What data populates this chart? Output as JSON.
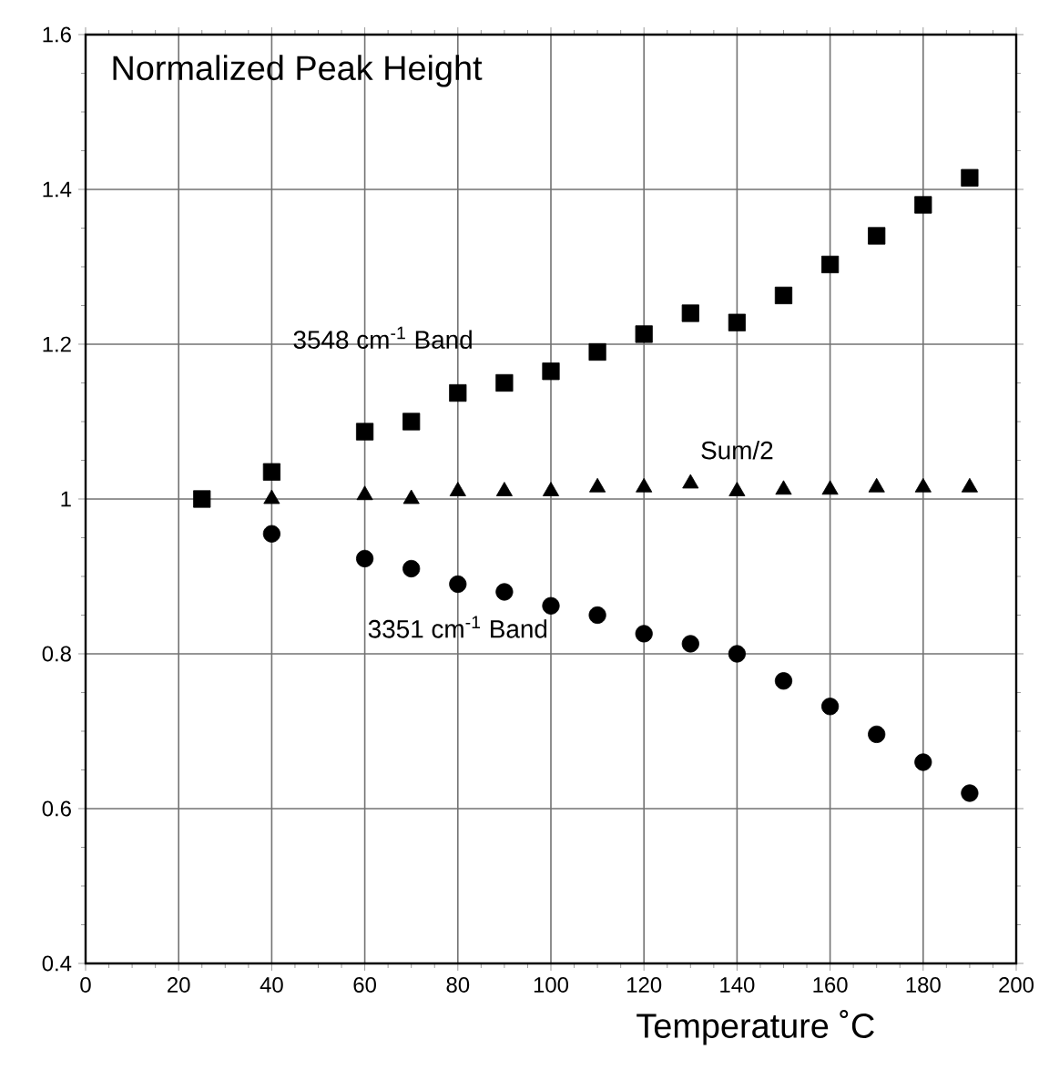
{
  "chart_data": {
    "type": "scatter",
    "title": "Normalized Peak Height",
    "xlabel": "Temperature ˚C",
    "xlim": [
      0,
      200
    ],
    "xticks": [
      0,
      20,
      40,
      60,
      80,
      100,
      120,
      140,
      160,
      180,
      200
    ],
    "ylim": [
      0.4,
      1.6
    ],
    "yticks": [
      0.4,
      0.6,
      0.8,
      1,
      1.2,
      1.4,
      1.6
    ],
    "grid": true,
    "legend": false,
    "series": [
      {
        "name": "3548 cm$^{-1}$ Band",
        "color": "#000000",
        "marker": "square",
        "x": [
          25,
          40,
          60,
          70,
          80,
          90,
          100,
          110,
          120,
          130,
          140,
          150,
          160,
          170,
          180,
          190
        ],
        "values": [
          1.0,
          1.035,
          1.087,
          1.1,
          1.137,
          1.15,
          1.165,
          1.19,
          1.213,
          1.24,
          1.228,
          1.263,
          1.303,
          1.34,
          1.38,
          1.415
        ]
      },
      {
        "name": "Sum/2",
        "color": "#000000",
        "marker": "triangle",
        "x": [
          40,
          60,
          70,
          80,
          90,
          100,
          110,
          120,
          130,
          140,
          150,
          160,
          170,
          180,
          190
        ],
        "values": [
          1.0,
          1.005,
          1.0,
          1.01,
          1.01,
          1.01,
          1.015,
          1.015,
          1.02,
          1.01,
          1.012,
          1.012,
          1.015,
          1.015,
          1.015
        ]
      },
      {
        "name": "3351 cm$^{-1}$ Band",
        "color": "#000000",
        "marker": "circle",
        "x": [
          40,
          60,
          70,
          80,
          90,
          100,
          110,
          120,
          130,
          140,
          150,
          160,
          170,
          180,
          190
        ],
        "values": [
          0.955,
          0.923,
          0.91,
          0.89,
          0.88,
          0.862,
          0.85,
          0.826,
          0.813,
          0.8,
          0.765,
          0.732,
          0.696,
          0.66,
          0.62
        ]
      }
    ]
  }
}
